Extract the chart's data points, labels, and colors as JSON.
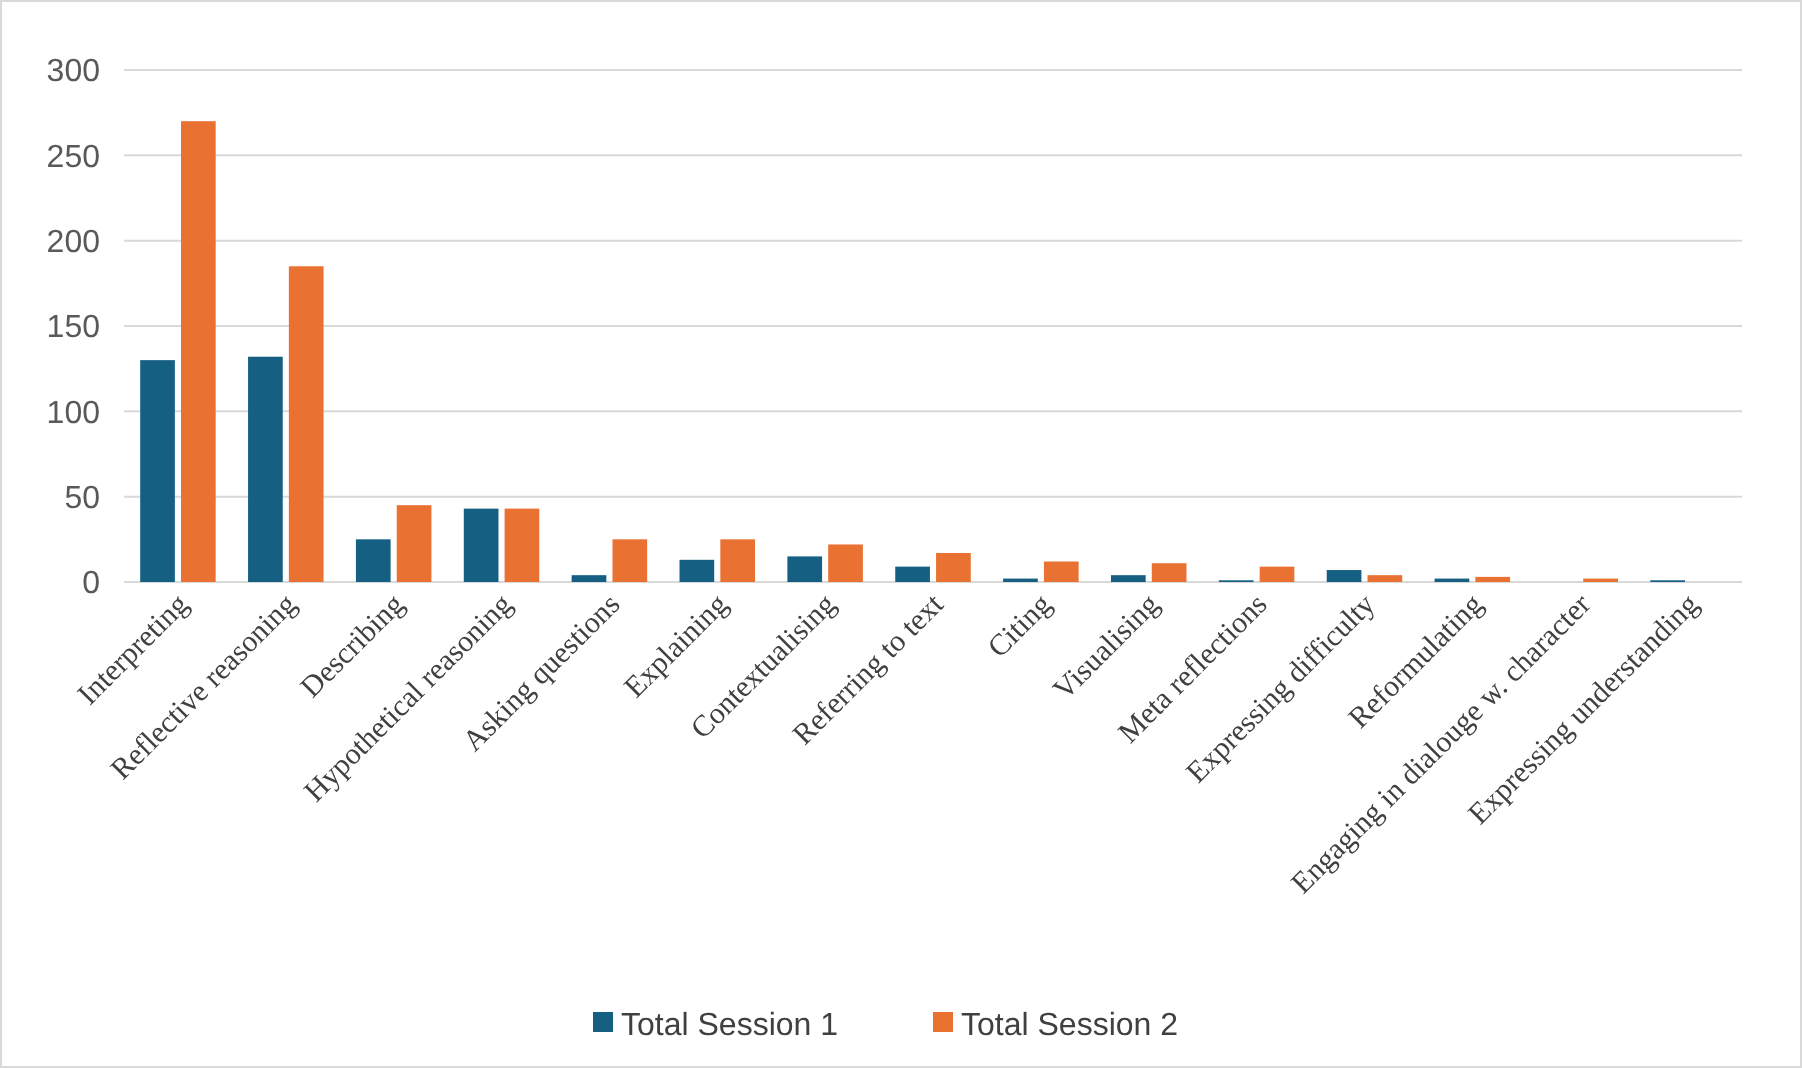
{
  "chart_data": {
    "type": "bar",
    "categories": [
      "Interpreting",
      "Reflective reasoning",
      "Describing",
      "Hypothetical reasoning",
      "Asking questions",
      "Explaining",
      "Contextualising",
      "Referring to text",
      "Citing",
      "Visualising",
      "Meta reflections",
      "Expressing difficulty",
      "Reformulating",
      "Engaging in dialouge w. character",
      "Expressing understanding"
    ],
    "series": [
      {
        "name": "Total Session 1",
        "color": "#156082",
        "values": [
          130,
          132,
          25,
          43,
          4,
          13,
          15,
          9,
          2,
          4,
          1,
          7,
          2,
          0,
          1
        ]
      },
      {
        "name": "Total Session 2",
        "color": "#e97132",
        "values": [
          270,
          185,
          45,
          43,
          25,
          25,
          22,
          17,
          12,
          11,
          9,
          4,
          3,
          2,
          0
        ]
      }
    ],
    "ylim": [
      0,
      300
    ],
    "yticks": [
      0,
      50,
      100,
      150,
      200,
      250,
      300
    ],
    "grid": "y",
    "legend": "bottom"
  }
}
